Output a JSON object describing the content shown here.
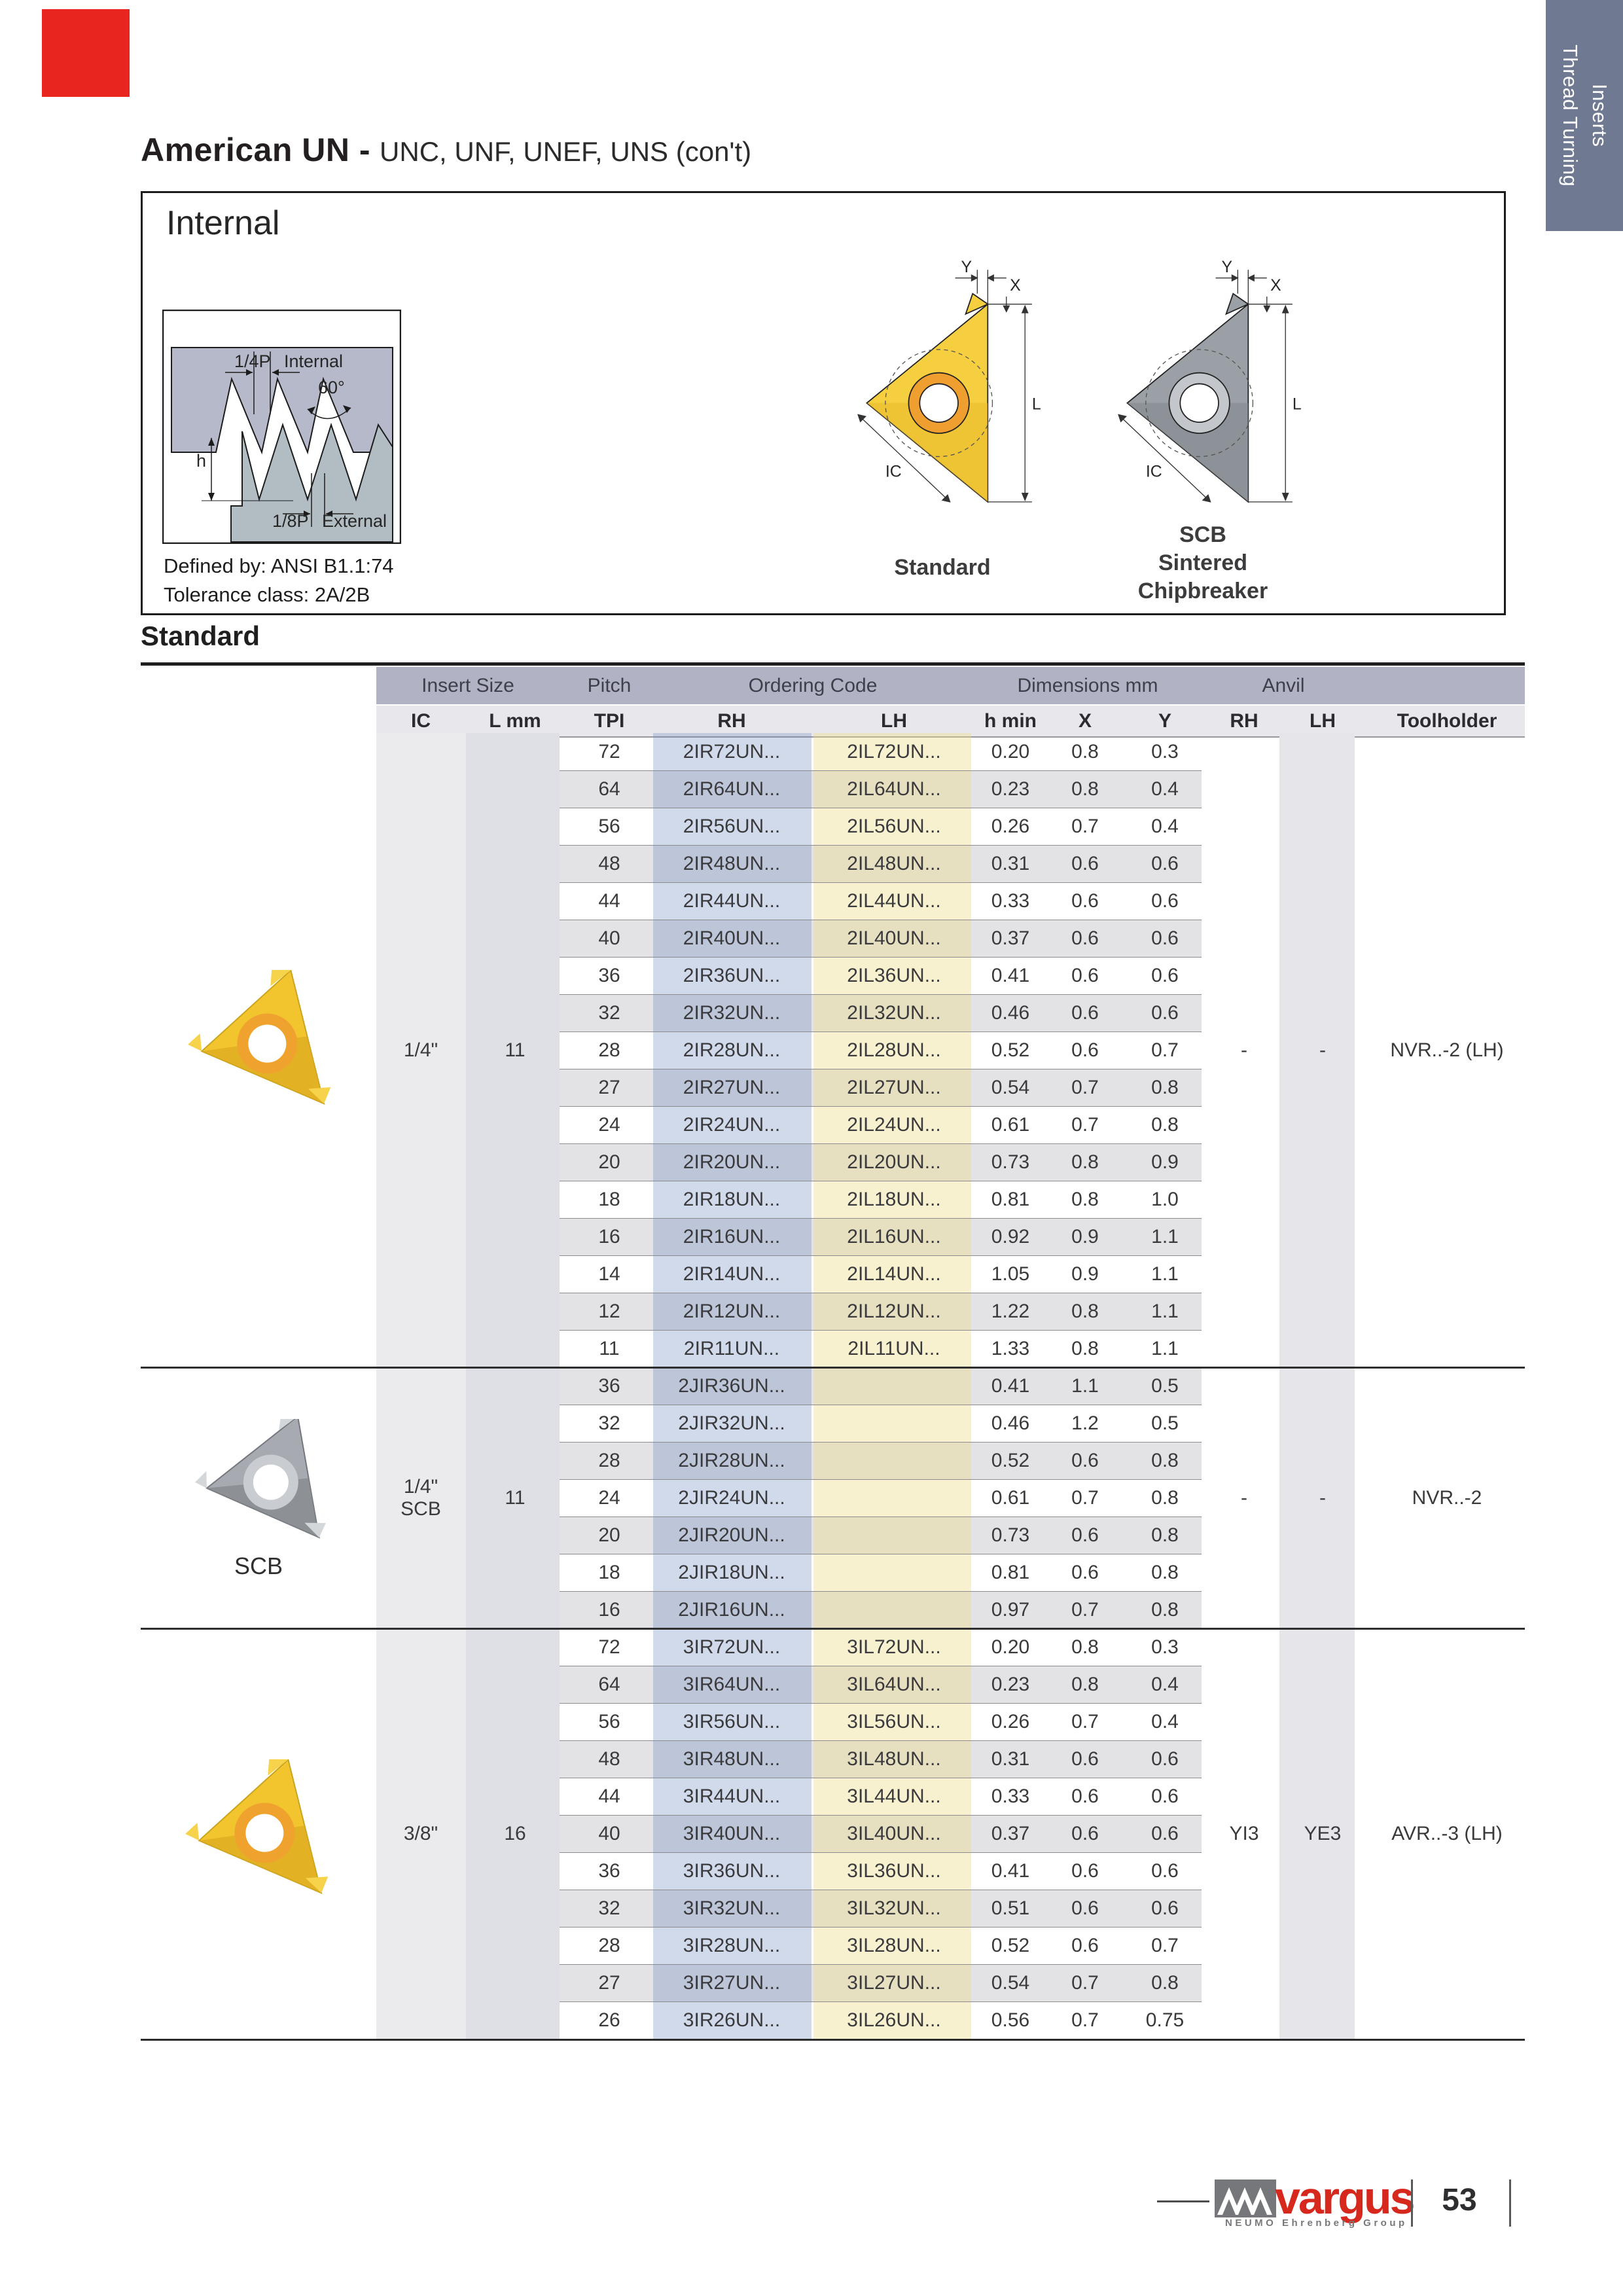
{
  "page": {
    "title_bold": "American UN -",
    "title_rest": "UNC, UNF, UNEF, UNS (con't)",
    "section_heading": "Standard",
    "tab_line1": "Thread Turning",
    "tab_line2": "Inserts"
  },
  "internal_box": {
    "heading": "Internal",
    "defined_by": "Defined by: ANSI B1.1:74",
    "tolerance": "Tolerance class: 2A/2B",
    "diagram_labels": {
      "quarter_p": "1/4P",
      "internal": "Internal",
      "angle": "60°",
      "h": "h",
      "eighth_p": "1/8P",
      "external": "External"
    },
    "dim_labels": {
      "y": "Y",
      "x": "X",
      "l": "L",
      "ic": "IC"
    },
    "standard_caption": "Standard",
    "scb_caption_line1": "SCB",
    "scb_caption_line2": "Sintered",
    "scb_caption_line3": "Chipbreaker"
  },
  "photos": {
    "scb_label": "SCB"
  },
  "table": {
    "group_headers": [
      "Insert Size",
      "Pitch",
      "Ordering Code",
      "Dimensions mm",
      "Anvil"
    ],
    "columns": [
      "IC",
      "L mm",
      "TPI",
      "RH",
      "LH",
      "h min",
      "X",
      "Y",
      "RH",
      "LH",
      "Toolholder"
    ],
    "groups": [
      {
        "ic": "1/4\"",
        "ic2": "",
        "l": "11",
        "anvil_rh": "-",
        "anvil_lh": "-",
        "toolholder": "NVR..-2 (LH)",
        "rows": [
          [
            "72",
            "2IR72UN...",
            "2IL72UN...",
            "0.20",
            "0.8",
            "0.3"
          ],
          [
            "64",
            "2IR64UN...",
            "2IL64UN...",
            "0.23",
            "0.8",
            "0.4"
          ],
          [
            "56",
            "2IR56UN...",
            "2IL56UN...",
            "0.26",
            "0.7",
            "0.4"
          ],
          [
            "48",
            "2IR48UN...",
            "2IL48UN...",
            "0.31",
            "0.6",
            "0.6"
          ],
          [
            "44",
            "2IR44UN...",
            "2IL44UN...",
            "0.33",
            "0.6",
            "0.6"
          ],
          [
            "40",
            "2IR40UN...",
            "2IL40UN...",
            "0.37",
            "0.6",
            "0.6"
          ],
          [
            "36",
            "2IR36UN...",
            "2IL36UN...",
            "0.41",
            "0.6",
            "0.6"
          ],
          [
            "32",
            "2IR32UN...",
            "2IL32UN...",
            "0.46",
            "0.6",
            "0.6"
          ],
          [
            "28",
            "2IR28UN...",
            "2IL28UN...",
            "0.52",
            "0.6",
            "0.7"
          ],
          [
            "27",
            "2IR27UN...",
            "2IL27UN...",
            "0.54",
            "0.7",
            "0.8"
          ],
          [
            "24",
            "2IR24UN...",
            "2IL24UN...",
            "0.61",
            "0.7",
            "0.8"
          ],
          [
            "20",
            "2IR20UN...",
            "2IL20UN...",
            "0.73",
            "0.8",
            "0.9"
          ],
          [
            "18",
            "2IR18UN...",
            "2IL18UN...",
            "0.81",
            "0.8",
            "1.0"
          ],
          [
            "16",
            "2IR16UN...",
            "2IL16UN...",
            "0.92",
            "0.9",
            "1.1"
          ],
          [
            "14",
            "2IR14UN...",
            "2IL14UN...",
            "1.05",
            "0.9",
            "1.1"
          ],
          [
            "12",
            "2IR12UN...",
            "2IL12UN...",
            "1.22",
            "0.8",
            "1.1"
          ],
          [
            "11",
            "2IR11UN...",
            "2IL11UN...",
            "1.33",
            "0.8",
            "1.1"
          ]
        ]
      },
      {
        "ic": "1/4\"",
        "ic2": "SCB",
        "l": "11",
        "anvil_rh": "-",
        "anvil_lh": "-",
        "toolholder": "NVR..-2",
        "rows": [
          [
            "36",
            "2JIR36UN...",
            "",
            "0.41",
            "1.1",
            "0.5"
          ],
          [
            "32",
            "2JIR32UN...",
            "",
            "0.46",
            "1.2",
            "0.5"
          ],
          [
            "28",
            "2JIR28UN...",
            "",
            "0.52",
            "0.6",
            "0.8"
          ],
          [
            "24",
            "2JIR24UN...",
            "",
            "0.61",
            "0.7",
            "0.8"
          ],
          [
            "20",
            "2JIR20UN...",
            "",
            "0.73",
            "0.6",
            "0.8"
          ],
          [
            "18",
            "2JIR18UN...",
            "",
            "0.81",
            "0.6",
            "0.8"
          ],
          [
            "16",
            "2JIR16UN...",
            "",
            "0.97",
            "0.7",
            "0.8"
          ]
        ]
      },
      {
        "ic": "3/8\"",
        "ic2": "",
        "l": "16",
        "anvil_rh": "YI3",
        "anvil_lh": "YE3",
        "toolholder": "AVR..-3 (LH)",
        "rows": [
          [
            "72",
            "3IR72UN...",
            "3IL72UN...",
            "0.20",
            "0.8",
            "0.3"
          ],
          [
            "64",
            "3IR64UN...",
            "3IL64UN...",
            "0.23",
            "0.8",
            "0.4"
          ],
          [
            "56",
            "3IR56UN...",
            "3IL56UN...",
            "0.26",
            "0.7",
            "0.4"
          ],
          [
            "48",
            "3IR48UN...",
            "3IL48UN...",
            "0.31",
            "0.6",
            "0.6"
          ],
          [
            "44",
            "3IR44UN...",
            "3IL44UN...",
            "0.33",
            "0.6",
            "0.6"
          ],
          [
            "40",
            "3IR40UN...",
            "3IL40UN...",
            "0.37",
            "0.6",
            "0.6"
          ],
          [
            "36",
            "3IR36UN...",
            "3IL36UN...",
            "0.41",
            "0.6",
            "0.6"
          ],
          [
            "32",
            "3IR32UN...",
            "3IL32UN...",
            "0.51",
            "0.6",
            "0.6"
          ],
          [
            "28",
            "3IR28UN...",
            "3IL28UN...",
            "0.52",
            "0.6",
            "0.7"
          ],
          [
            "27",
            "3IR27UN...",
            "3IL27UN...",
            "0.54",
            "0.7",
            "0.8"
          ],
          [
            "26",
            "3IR26UN...",
            "3IL26UN...",
            "0.56",
            "0.7",
            "0.75"
          ]
        ]
      }
    ]
  },
  "footer": {
    "brand": "vargus",
    "tagline": "NEUMO Ehrenberg Group",
    "page_number": "53"
  },
  "colors": {
    "accent_red": "#e8261f",
    "tab_slate": "#6f7992",
    "header_band": "#b1b3c4",
    "row_gray": "#e3e3e6",
    "stripe_blue": "#ccd5e8",
    "stripe_yellow": "#faf5dc",
    "brand_red": "#d7281e"
  }
}
